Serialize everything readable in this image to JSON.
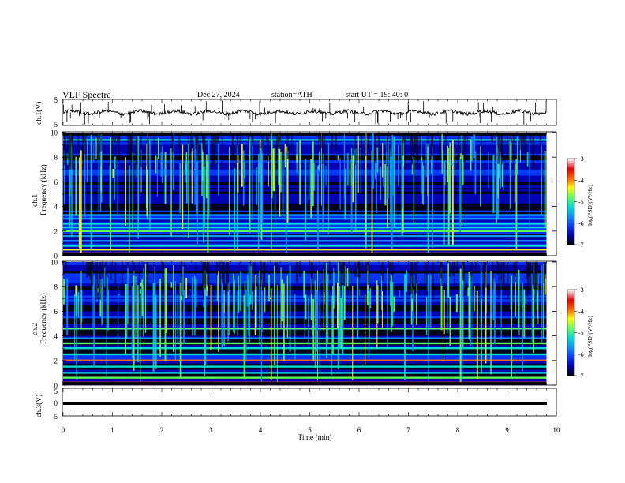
{
  "header": {
    "title": "VLF  Spectra",
    "date": "Dec.27, 2024",
    "station": "station=ATH",
    "start": "start  UT  =    19: 40: 0"
  },
  "colors": {
    "colormap": [
      "#000000",
      "#0000b4",
      "#0a3cff",
      "#0a96ff",
      "#00dcd2",
      "#5aff5a",
      "#ffff00",
      "#ff6400",
      "#e60000",
      "#ffffff"
    ],
    "waveform": "#000000"
  },
  "chart_data": [
    {
      "type": "line",
      "panel": "ch1-waveform",
      "ylabel": "ch.1(V)",
      "ylim": [
        -5,
        5
      ],
      "yticks": [
        "5",
        "-5"
      ],
      "xlim": [
        0,
        10
      ],
      "description_level_V": 0
    },
    {
      "type": "heatmap",
      "panel": "ch1-spectrogram",
      "ylabel": "Frequency  (kHz)",
      "channel_label": "ch.1",
      "ylim": [
        0,
        10
      ],
      "yticks": [
        "10",
        "8",
        "6",
        "4",
        "2",
        "0"
      ],
      "xlim": [
        0,
        9.8
      ],
      "colorbar": {
        "label": "log(PSD)(V²/Hz)",
        "range": [
          -7,
          -3
        ],
        "ticks": [
          "-3",
          "-4",
          "-5",
          "-6",
          "-7"
        ]
      },
      "bands_kHz": [
        {
          "f": 0.2,
          "level": -3.6
        },
        {
          "f": 0.5,
          "level": -3.9
        },
        {
          "f": 0.8,
          "level": -4.8
        },
        {
          "f": 1.2,
          "level": -5.4
        },
        {
          "f": 1.6,
          "level": -5.6
        },
        {
          "f": 2.0,
          "level": -4.6
        },
        {
          "f": 2.3,
          "level": -5.0
        },
        {
          "f": 2.6,
          "level": -5.2
        },
        {
          "f": 3.0,
          "level": -5.4
        },
        {
          "f": 3.3,
          "level": -5.6
        },
        {
          "f": 3.6,
          "level": -6.0
        },
        {
          "f": 4.4,
          "level": -6.2
        },
        {
          "f": 5.3,
          "level": -6.2
        },
        {
          "f": 6.8,
          "level": -5.8
        },
        {
          "f": 8.2,
          "level": -5.8
        },
        {
          "f": 9.4,
          "level": -5.2
        }
      ],
      "background_level": -6.3
    },
    {
      "type": "heatmap",
      "panel": "ch2-spectrogram",
      "ylabel": "Frequency  (kHz)",
      "channel_label": "ch.2",
      "ylim": [
        0,
        10
      ],
      "yticks": [
        "10",
        "8",
        "6",
        "4",
        "2",
        "0"
      ],
      "xlim": [
        0,
        9.8
      ],
      "colorbar": {
        "label": "log(PSD)(V²/Hz)",
        "range": [
          -7,
          -3
        ],
        "ticks": [
          "-3",
          "-4",
          "-5",
          "-6",
          "-7"
        ]
      },
      "bands_kHz": [
        {
          "f": 0.2,
          "level": -3.6
        },
        {
          "f": 0.6,
          "level": -4.4
        },
        {
          "f": 1.0,
          "level": -5.2
        },
        {
          "f": 1.5,
          "level": -5.0
        },
        {
          "f": 2.0,
          "level": -3.5
        },
        {
          "f": 2.5,
          "level": -5.0
        },
        {
          "f": 3.0,
          "level": -5.0
        },
        {
          "f": 3.4,
          "level": -4.6
        },
        {
          "f": 3.8,
          "level": -5.4
        },
        {
          "f": 4.6,
          "level": -4.4
        },
        {
          "f": 5.5,
          "level": -6.0
        },
        {
          "f": 7.2,
          "level": -6.0
        },
        {
          "f": 9.0,
          "level": -5.8
        }
      ],
      "background_level": -6.4
    },
    {
      "type": "line",
      "panel": "ch3-waveform",
      "ylabel": "ch.3(V)",
      "ylim": [
        -5,
        5
      ],
      "yticks": [
        "5",
        "0",
        "-5"
      ],
      "xlim": [
        0,
        10
      ],
      "level_V": -1.5
    }
  ],
  "xaxis": {
    "label": "Time  (min)",
    "ticks": [
      "0",
      "1",
      "2",
      "3",
      "4",
      "5",
      "6",
      "7",
      "8",
      "9",
      "10"
    ]
  }
}
